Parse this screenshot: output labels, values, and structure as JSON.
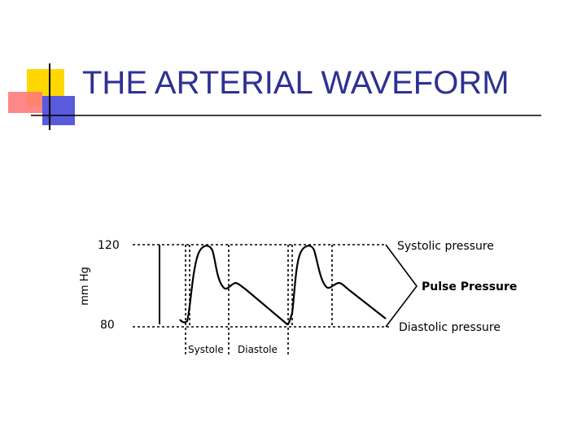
{
  "slide": {
    "title": "THE ARTERIAL WAVEFORM"
  },
  "colors": {
    "title": "#2e3192",
    "decor_yellow": "#ffd700",
    "decor_blue": "#5a5adc",
    "decor_red": "#ff7a7a",
    "rule": "#000000"
  },
  "diagram": {
    "y_axis_label": "mm Hg",
    "y_top_label": "120",
    "y_bottom_label": "80",
    "label_systolic_pressure": "Systolic pressure",
    "label_pulse_pressure": "Pulse Pressure",
    "label_diastolic_pressure": "Diastolic pressure",
    "label_systole": "Systole",
    "label_diastole": "Diastole"
  }
}
